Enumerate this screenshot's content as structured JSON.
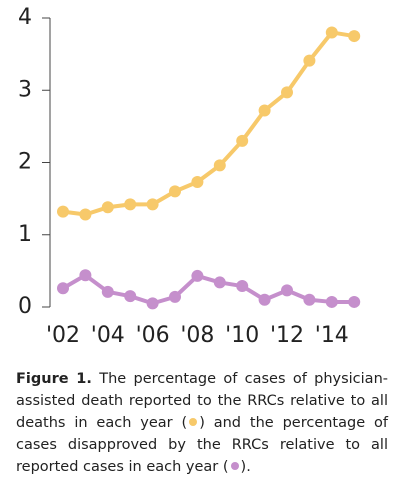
{
  "chart_data": {
    "type": "line",
    "categories": [
      "'02",
      null,
      "'04",
      null,
      "'06",
      null,
      "'08",
      null,
      "'10",
      null,
      "'12",
      null,
      "'14",
      null
    ],
    "series": [
      {
        "color": "#f7c96a",
        "values": [
          1.32,
          1.28,
          1.38,
          1.42,
          1.42,
          1.6,
          1.73,
          1.96,
          2.3,
          2.72,
          2.97,
          3.41,
          3.8,
          3.75
        ]
      },
      {
        "color": "#c58fcc",
        "values": [
          0.26,
          0.44,
          0.21,
          0.15,
          0.05,
          0.14,
          0.43,
          0.34,
          0.29,
          0.1,
          0.23,
          0.1,
          0.07,
          0.07
        ]
      }
    ],
    "ylim": [
      0,
      4
    ],
    "yticks": [
      0,
      1,
      2,
      3,
      4
    ]
  },
  "caption": {
    "label": "Figure 1.",
    "text": [
      "The percentage of cases of physician-assisted death reported to the RRCs relative to all deaths in each year (",
      ") and the percentage of cases disapproved by the RRCs relative to all reported cases in each year (",
      ")."
    ]
  }
}
